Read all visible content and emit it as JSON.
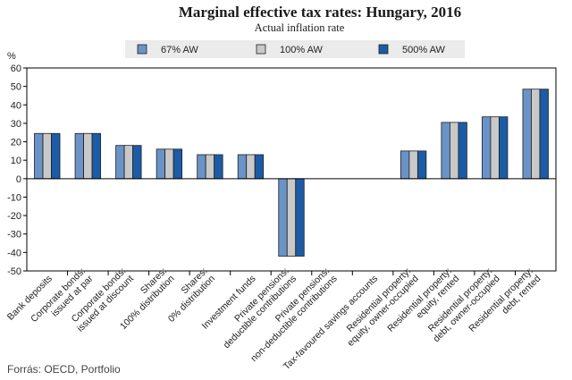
{
  "chart_data": {
    "type": "bar",
    "title": "Marginal effective tax rates: Hungary, 2016",
    "subtitle": "Actual inflation rate",
    "ylabel": "%",
    "ylim": [
      -50,
      60
    ],
    "yticks": [
      60,
      50,
      40,
      30,
      20,
      10,
      0,
      -10,
      -20,
      -30,
      -40,
      -50
    ],
    "categories": [
      [
        "Bank deposits"
      ],
      [
        "Corporate bonds:",
        "issued at par"
      ],
      [
        "Corporate bonds:",
        "issued at discount"
      ],
      [
        "Shares:",
        "100% distribution"
      ],
      [
        "Shares:",
        "0% distribution"
      ],
      [
        "Investment funds"
      ],
      [
        "Private pensions:",
        "deductible contributions"
      ],
      [
        "Private pensions:",
        "non-deductible contributions"
      ],
      [
        "Tax-favoured savings accounts"
      ],
      [
        "Residential property:",
        "equity, owner-occupied"
      ],
      [
        "Residential property:",
        "equity, rented"
      ],
      [
        "Residential property:",
        "debt, owner-occupied"
      ],
      [
        "Residential property:",
        "debt, rented"
      ]
    ],
    "series": [
      {
        "name": "67% AW",
        "color": "#6a93c8",
        "values": [
          24.5,
          24.5,
          18,
          16,
          13,
          13,
          -42,
          0,
          0,
          15,
          30.5,
          33.5,
          48.5
        ]
      },
      {
        "name": "100% AW",
        "color": "#c9c9c9",
        "values": [
          24.5,
          24.5,
          18,
          16,
          13,
          13,
          -42,
          0,
          0,
          15,
          30.5,
          33.5,
          48.5
        ]
      },
      {
        "name": "500% AW",
        "color": "#1c5ca6",
        "values": [
          24.5,
          24.5,
          18,
          16,
          13,
          13,
          -42,
          0,
          0,
          15,
          30.5,
          33.5,
          48.5
        ]
      }
    ],
    "legend_position": "top-center",
    "grid": false
  },
  "source": "Forrás: OECD, Portfolio"
}
